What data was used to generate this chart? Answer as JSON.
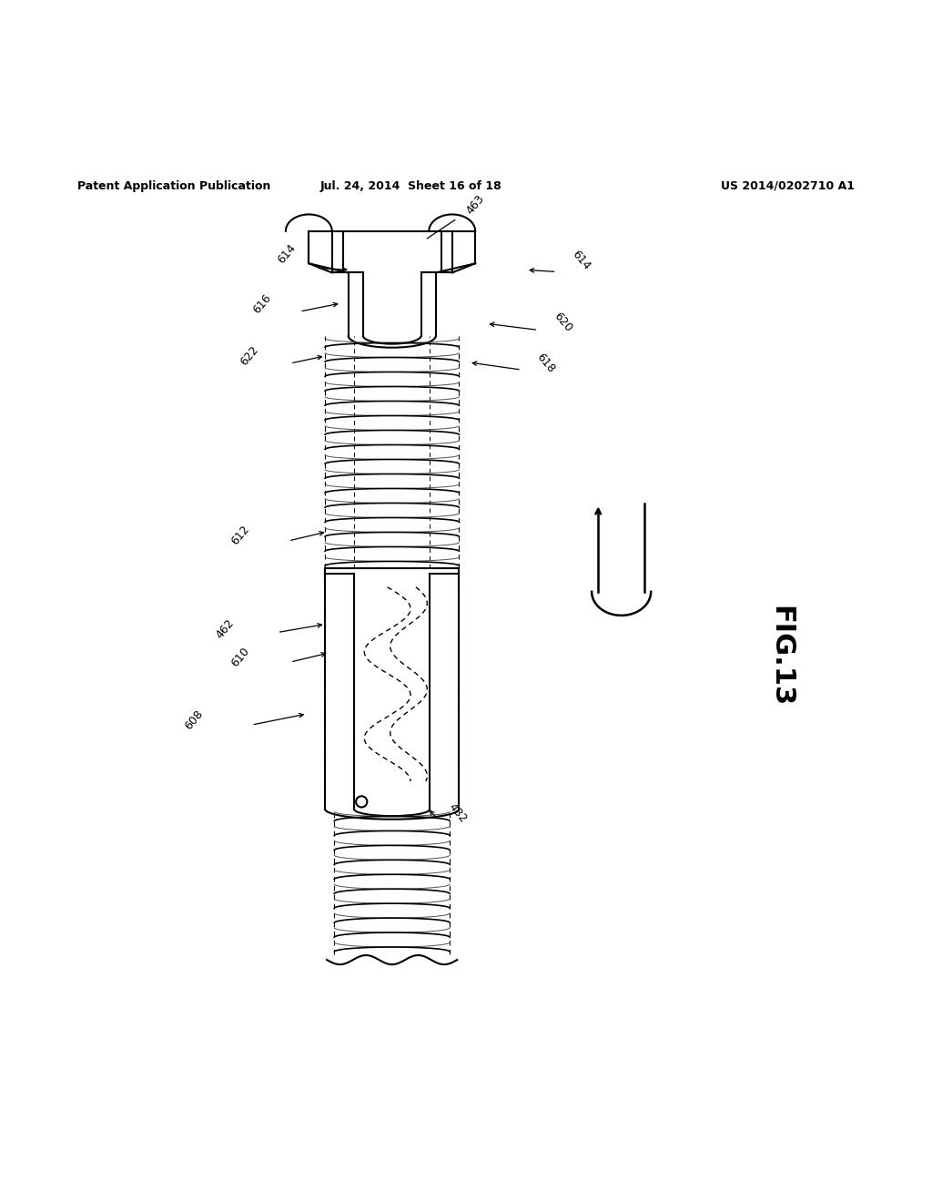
{
  "bg_color": "#ffffff",
  "header_left": "Patent Application Publication",
  "header_mid": "Jul. 24, 2014  Sheet 16 of 18",
  "header_right": "US 2014/0202710 A1",
  "fig_label": "FIG.13"
}
